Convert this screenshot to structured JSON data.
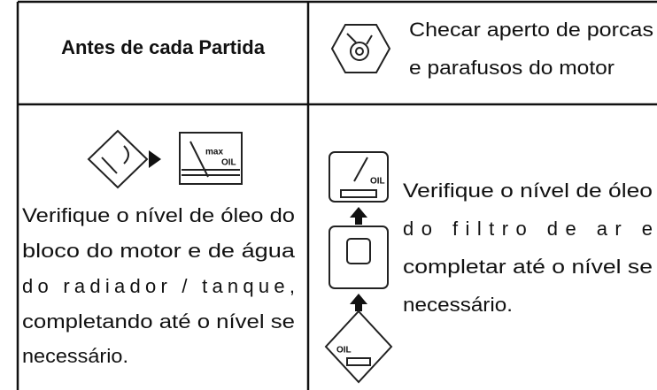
{
  "header": {
    "title": "Antes de cada Partida",
    "instruction_lines": [
      "Checar aperto de porcas",
      "e parafusos do motor"
    ]
  },
  "rows": [
    {
      "lines": [
        "Verifique o nível de óleo do",
        "bloco do motor e de água",
        "do radiador / tanque,",
        "completando até o nível se",
        "necessário."
      ],
      "icon_labels": [
        "max",
        "OIL"
      ]
    },
    {
      "lines": [
        "Verifique o nível de óleo",
        "do filtro de ar e",
        "completar até o nível se",
        "necessário."
      ],
      "icon_labels": [
        "OIL",
        "OIL"
      ]
    }
  ]
}
